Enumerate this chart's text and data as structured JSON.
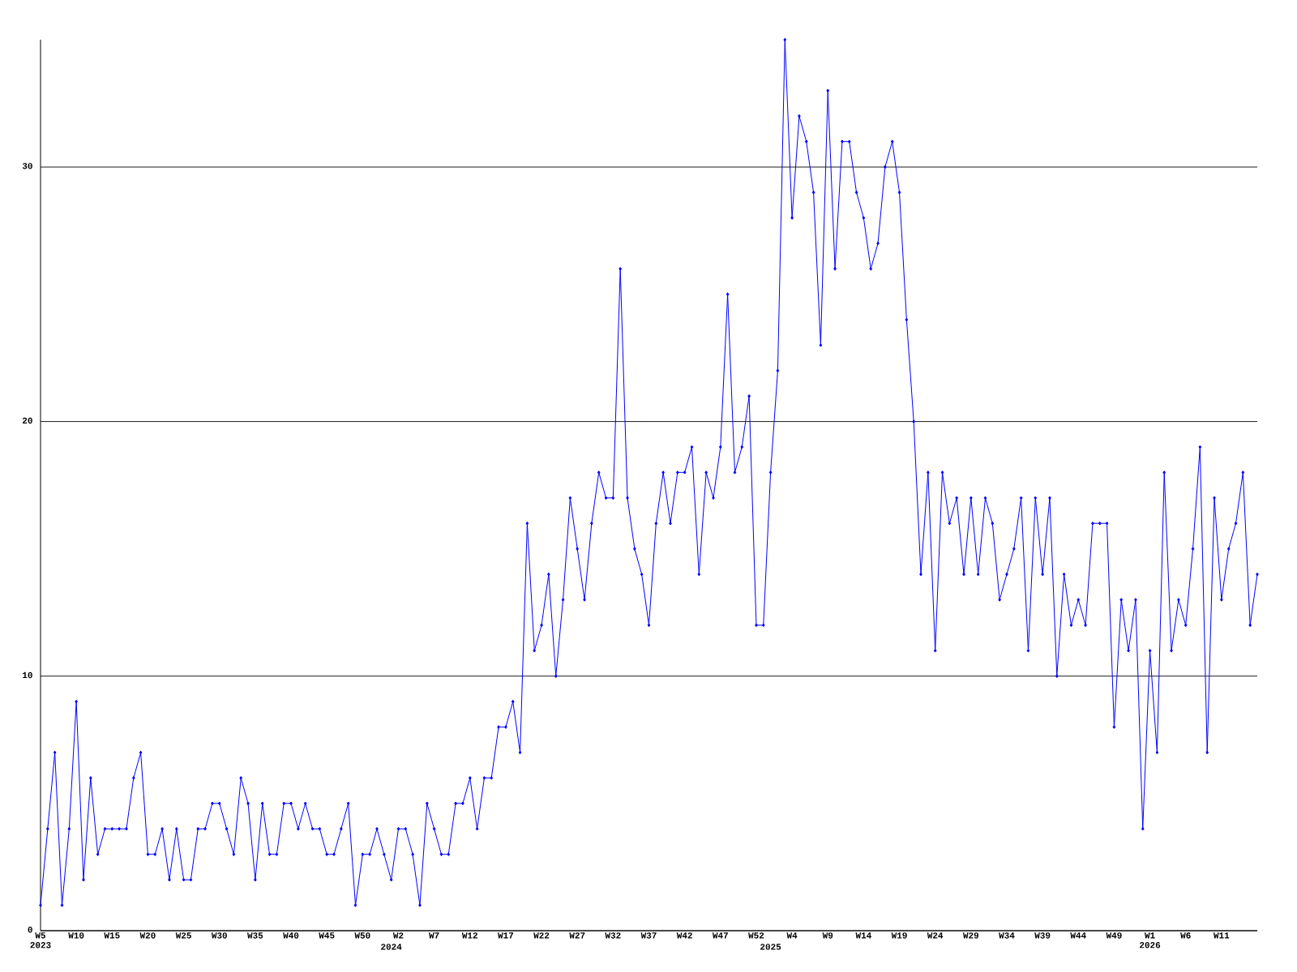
{
  "chart_data": {
    "type": "line",
    "categories": [
      "W5 2023",
      null,
      null,
      null,
      null,
      "W10",
      null,
      null,
      null,
      null,
      "W15",
      null,
      null,
      null,
      null,
      "W20",
      null,
      null,
      null,
      null,
      "W25",
      null,
      null,
      null,
      null,
      "W30",
      null,
      null,
      null,
      null,
      "W35",
      null,
      null,
      null,
      null,
      "W40",
      null,
      null,
      null,
      null,
      "W45",
      null,
      null,
      null,
      null,
      "W50",
      null,
      null,
      null,
      "2024",
      "W2",
      null,
      null,
      null,
      null,
      "W7",
      null,
      null,
      null,
      null,
      "W12",
      null,
      null,
      null,
      null,
      "W17",
      null,
      null,
      null,
      null,
      "W22",
      null,
      null,
      null,
      null,
      "W27",
      null,
      null,
      null,
      null,
      "W32",
      null,
      null,
      null,
      null,
      "W37",
      null,
      null,
      null,
      null,
      "W42",
      null,
      null,
      null,
      null,
      "W47",
      null,
      null,
      null,
      null,
      "W52",
      null,
      "2025",
      null,
      null,
      "W4",
      null,
      null,
      null,
      null,
      "W9",
      null,
      null,
      null,
      null,
      "W14",
      null,
      null,
      null,
      null,
      "W19",
      null,
      null,
      null,
      null,
      "W24",
      null,
      null,
      null,
      null,
      "W29",
      null,
      null,
      null,
      null,
      "W34",
      null,
      null,
      null,
      null,
      "W39",
      null,
      null,
      null,
      null,
      "W44",
      null,
      null,
      null,
      null,
      "W49",
      null,
      null,
      null,
      null,
      "W1 2026",
      null,
      null,
      null,
      null,
      "W6",
      null,
      null,
      null,
      null,
      "W11",
      null,
      null,
      null,
      null,
      null
    ],
    "values": [
      1,
      4,
      7,
      1,
      4,
      9,
      2,
      6,
      3,
      4,
      4,
      4,
      4,
      6,
      7,
      3,
      3,
      4,
      2,
      4,
      2,
      2,
      4,
      4,
      5,
      5,
      4,
      3,
      6,
      5,
      2,
      5,
      3,
      3,
      5,
      5,
      4,
      5,
      4,
      4,
      3,
      3,
      4,
      5,
      1,
      3,
      3,
      4,
      3,
      2,
      4,
      4,
      3,
      1,
      5,
      4,
      3,
      3,
      5,
      5,
      6,
      4,
      6,
      6,
      8,
      8,
      9,
      7,
      16,
      11,
      12,
      14,
      10,
      13,
      17,
      15,
      13,
      16,
      18,
      17,
      17,
      26,
      17,
      15,
      14,
      12,
      16,
      18,
      16,
      18,
      18,
      19,
      14,
      18,
      17,
      19,
      25,
      18,
      19,
      21,
      12,
      12,
      18,
      22,
      35,
      28,
      32,
      31,
      29,
      23,
      33,
      26,
      31,
      31,
      29,
      28,
      26,
      27,
      30,
      31,
      29,
      24,
      20,
      14,
      18,
      11,
      18,
      16,
      17,
      14,
      17,
      14,
      17,
      16,
      13,
      14,
      15,
      17,
      11,
      17,
      14,
      17,
      10,
      14,
      12,
      13,
      12,
      16,
      16,
      16,
      8,
      13,
      11,
      13,
      4,
      11,
      7,
      18,
      11,
      13,
      12,
      15,
      19,
      7,
      17,
      13,
      15,
      16,
      18,
      12,
      14
    ],
    "color": "#0000ff",
    "ylim": [
      0,
      35
    ],
    "yticks": [
      0,
      10,
      20,
      30
    ],
    "grid": "y",
    "marker": "diamond",
    "line_style": "solid"
  }
}
